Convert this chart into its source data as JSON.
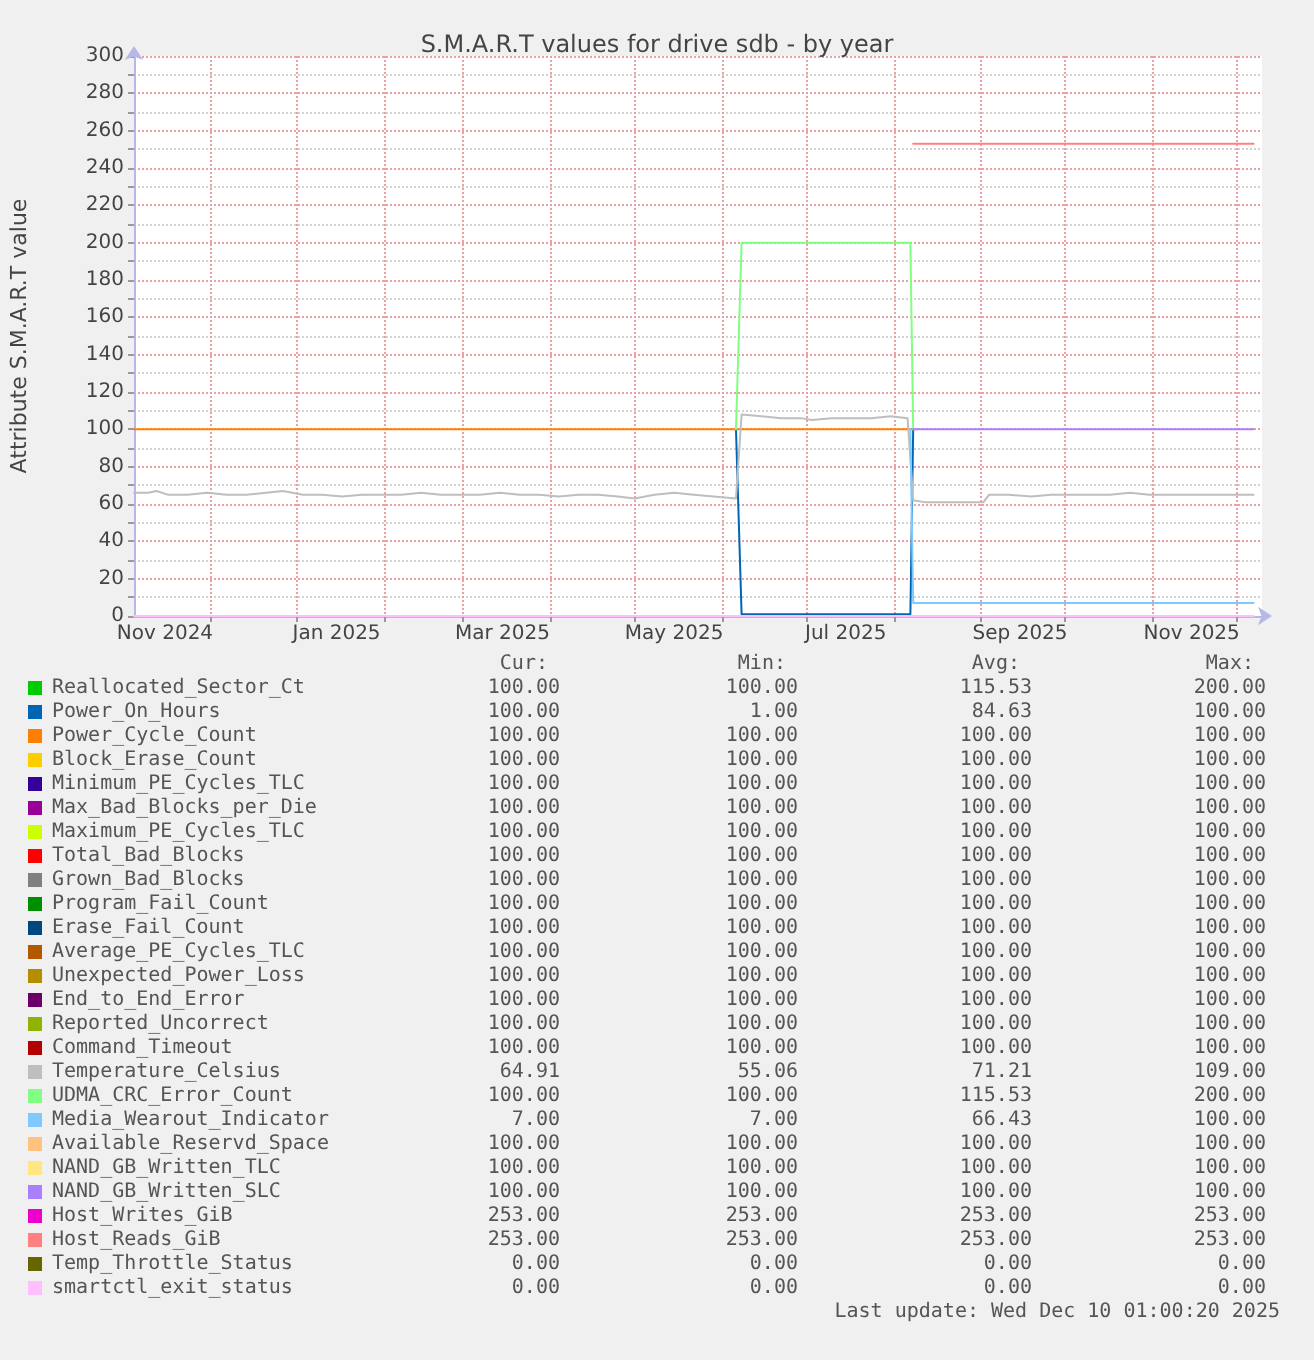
{
  "chart_data": {
    "type": "line",
    "title": "S.M.A.R.T values for drive sdb - by year",
    "ylabel": "Attribute S.M.A.R.T value",
    "xlim": [
      "2024-11-04",
      "2025-12-10"
    ],
    "xticks": [
      {
        "value": "2024-11-15",
        "label": "Nov 2024"
      },
      {
        "value": "2024-12-01",
        "label": null
      },
      {
        "value": "2025-01-01",
        "label": null
      },
      {
        "value": "2025-01-15",
        "label": "Jan 2025"
      },
      {
        "value": "2025-02-01",
        "label": null
      },
      {
        "value": "2025-03-01",
        "label": null
      },
      {
        "value": "2025-03-15",
        "label": "Mar 2025"
      },
      {
        "value": "2025-04-01",
        "label": null
      },
      {
        "value": "2025-05-01",
        "label": null
      },
      {
        "value": "2025-05-15",
        "label": "May 2025"
      },
      {
        "value": "2025-06-01",
        "label": null
      },
      {
        "value": "2025-07-01",
        "label": null
      },
      {
        "value": "2025-07-15",
        "label": "Jul 2025"
      },
      {
        "value": "2025-08-01",
        "label": null
      },
      {
        "value": "2025-09-01",
        "label": null
      },
      {
        "value": "2025-09-15",
        "label": "Sep 2025"
      },
      {
        "value": "2025-10-01",
        "label": null
      },
      {
        "value": "2025-11-01",
        "label": null
      },
      {
        "value": "2025-11-15",
        "label": "Nov 2025"
      },
      {
        "value": "2025-12-01",
        "label": null
      }
    ],
    "ylim": [
      0,
      300
    ],
    "yticks": [
      0,
      {
        "value": 10,
        "label": null
      },
      20,
      {
        "value": 30,
        "label": null
      },
      40,
      {
        "value": 50,
        "label": null
      },
      60,
      {
        "value": 70,
        "label": null
      },
      80,
      {
        "value": 90,
        "label": null
      },
      100,
      {
        "value": 110,
        "label": null
      },
      120,
      {
        "value": 130,
        "label": null
      },
      140,
      {
        "value": 150,
        "label": null
      },
      160,
      {
        "value": 170,
        "label": null
      },
      180,
      {
        "value": 190,
        "label": null
      },
      200,
      {
        "value": 210,
        "label": null
      },
      220,
      {
        "value": 230,
        "label": null
      },
      240,
      {
        "value": 250,
        "label": null
      },
      260,
      {
        "value": 270,
        "label": null
      },
      280,
      {
        "value": 290,
        "label": null
      },
      300
    ],
    "grid": true,
    "legend": "bottom",
    "series": [
      {
        "name": "Reallocated_Sector_Ct",
        "color": "#00cc00"
      },
      {
        "name": "Power_On_Hours",
        "color": "#0066b3",
        "x": [
          "2025-06-06",
          "2025-06-08",
          "2025-08-07",
          "2025-08-08"
        ],
        "values": [
          100,
          1,
          1,
          100
        ]
      },
      {
        "name": "Power_Cycle_Count",
        "color": "#ff8000",
        "x": [
          "2024-11-04",
          "2025-08-08"
        ],
        "values": [
          100,
          100
        ]
      },
      {
        "name": "Block_Erase_Count",
        "color": "#ffcc00"
      },
      {
        "name": "Minimum_PE_Cycles_TLC",
        "color": "#330099"
      },
      {
        "name": "Max_Bad_Blocks_per_Die",
        "color": "#990099"
      },
      {
        "name": "Maximum_PE_Cycles_TLC",
        "color": "#ccff00"
      },
      {
        "name": "Total_Bad_Blocks",
        "color": "#ff0000"
      },
      {
        "name": "Grown_Bad_Blocks",
        "color": "#808080"
      },
      {
        "name": "Program_Fail_Count",
        "color": "#008f00"
      },
      {
        "name": "Erase_Fail_Count",
        "color": "#00487d"
      },
      {
        "name": "Average_PE_Cycles_TLC",
        "color": "#b35a00"
      },
      {
        "name": "Unexpected_Power_Loss",
        "color": "#b38f00"
      },
      {
        "name": "End_to_End_Error",
        "color": "#6b006b"
      },
      {
        "name": "Reported_Uncorrect",
        "color": "#8fb300"
      },
      {
        "name": "Command_Timeout",
        "color": "#b30000"
      },
      {
        "name": "Temperature_Celsius",
        "color": "#bebebe",
        "x": [
          "2024-11-04",
          "2024-11-09",
          "2024-11-12",
          "2024-11-16",
          "2024-11-23",
          "2024-11-30",
          "2024-12-07",
          "2024-12-14",
          "2024-12-21",
          "2024-12-27",
          "2025-01-03",
          "2025-01-10",
          "2025-01-17",
          "2025-01-24",
          "2025-01-31",
          "2025-02-07",
          "2025-02-14",
          "2025-02-21",
          "2025-02-28",
          "2025-03-07",
          "2025-03-14",
          "2025-03-21",
          "2025-03-28",
          "2025-04-04",
          "2025-04-11",
          "2025-04-18",
          "2025-04-25",
          "2025-05-01",
          "2025-05-08",
          "2025-05-15",
          "2025-05-22",
          "2025-05-29",
          "2025-06-06",
          "2025-06-08",
          "2025-06-15",
          "2025-06-22",
          "2025-06-29",
          "2025-07-03",
          "2025-07-10",
          "2025-07-17",
          "2025-07-24",
          "2025-07-31",
          "2025-08-06",
          "2025-08-08",
          "2025-08-12",
          "2025-08-20",
          "2025-08-28",
          "2025-09-02",
          "2025-09-04",
          "2025-09-11",
          "2025-09-19",
          "2025-09-26",
          "2025-10-03",
          "2025-10-10",
          "2025-10-17",
          "2025-10-24",
          "2025-10-31",
          "2025-11-07",
          "2025-11-14",
          "2025-11-21",
          "2025-11-28",
          "2025-12-05",
          "2025-12-07"
        ],
        "values": [
          66,
          66,
          67,
          65,
          65,
          66,
          65,
          65,
          66,
          67,
          65,
          65,
          64,
          65,
          65,
          65,
          66,
          65,
          65,
          65,
          66,
          65,
          65,
          64,
          65,
          65,
          64,
          63,
          65,
          66,
          65,
          64,
          63,
          108,
          107,
          106,
          106,
          105,
          106,
          106,
          106,
          107,
          106,
          62,
          61,
          61,
          61,
          61,
          65,
          65,
          64,
          65,
          65,
          65,
          65,
          66,
          65,
          65,
          65,
          65,
          65,
          65,
          65
        ]
      },
      {
        "name": "UDMA_CRC_Error_Count",
        "color": "#80ff80",
        "x": [
          "2025-06-06",
          "2025-06-08",
          "2025-08-07",
          "2025-08-08"
        ],
        "values": [
          100,
          200,
          200,
          100
        ]
      },
      {
        "name": "Media_Wearout_Indicator",
        "color": "#80c9ff",
        "x": [
          "2025-08-07",
          "2025-08-08",
          "2025-12-07"
        ],
        "values": [
          100,
          7,
          7
        ]
      },
      {
        "name": "Available_Reservd_Space",
        "color": "#ffc080"
      },
      {
        "name": "NAND_GB_Written_TLC",
        "color": "#ffe680"
      },
      {
        "name": "NAND_GB_Written_SLC",
        "color": "#aa80ff",
        "x": [
          "2025-08-08",
          "2025-12-07"
        ],
        "values": [
          100,
          100
        ]
      },
      {
        "name": "Host_Writes_GiB",
        "color": "#ee00cc"
      },
      {
        "name": "Host_Reads_GiB",
        "color": "#ff8080",
        "x": [
          "2025-08-08",
          "2025-12-07"
        ],
        "values": [
          253,
          253
        ]
      },
      {
        "name": "Temp_Throttle_Status",
        "color": "#666600"
      },
      {
        "name": "smartctl_exit_status",
        "color": "#ffbfff",
        "x": [
          "2024-11-04",
          "2025-12-07"
        ],
        "values": [
          0,
          0
        ]
      }
    ],
    "annotations": [
      "Cur:",
      "Min:",
      "Avg:",
      "Max:",
      "100.00",
      "100.00",
      "115.53",
      "200.00",
      "100.00",
      "1.00",
      "84.63",
      "100.00",
      "100.00",
      "100.00",
      "100.00",
      "100.00",
      "100.00",
      "100.00",
      "100.00",
      "100.00",
      "100.00",
      "100.00",
      "100.00",
      "100.00",
      "100.00",
      "100.00",
      "100.00",
      "100.00",
      "100.00",
      "100.00",
      "100.00",
      "100.00",
      "100.00",
      "100.00",
      "100.00",
      "100.00",
      "100.00",
      "100.00",
      "100.00",
      "100.00",
      "100.00",
      "100.00",
      "100.00",
      "100.00",
      "100.00",
      "100.00",
      "100.00",
      "100.00",
      "100.00",
      "100.00",
      "100.00",
      "100.00",
      "100.00",
      "100.00",
      "100.00",
      "100.00",
      "100.00",
      "100.00",
      "100.00",
      "100.00",
      "100.00",
      "100.00",
      "100.00",
      "100.00",
      "100.00",
      "100.00",
      "100.00",
      "100.00",
      "64.91",
      "55.06",
      "71.21",
      "109.00",
      "100.00",
      "100.00",
      "115.53",
      "200.00",
      "7.00",
      "7.00",
      "66.43",
      "100.00",
      "100.00",
      "100.00",
      "100.00",
      "100.00",
      "100.00",
      "100.00",
      "100.00",
      "100.00",
      "100.00",
      "100.00",
      "100.00",
      "100.00",
      "253.00",
      "253.00",
      "253.00",
      "253.00",
      "253.00",
      "253.00",
      "253.00",
      "253.00",
      "0.00",
      "0.00",
      "0.00",
      "0.00",
      "0.00",
      "0.00",
      "0.00",
      "0.00",
      "Last update: Wed Dec 10 01:00:20 2025"
    ]
  }
}
